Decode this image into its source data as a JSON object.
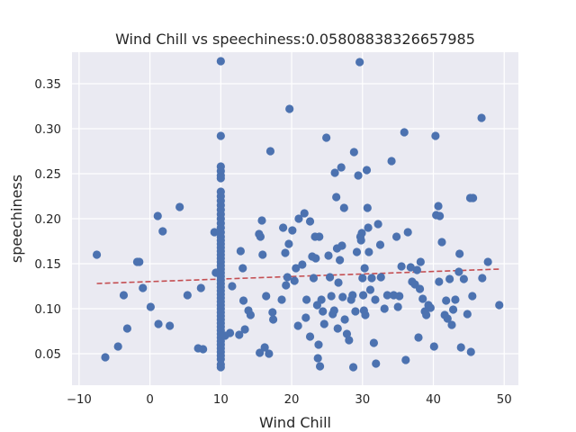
{
  "chart_data": {
    "type": "scatter",
    "title": "Wind Chill vs speechiness:0.05808838326657985",
    "xlabel": "Wind Chill",
    "ylabel": "speechiness",
    "xlim": [
      -11,
      52
    ],
    "ylim": [
      0.015,
      0.385
    ],
    "xticks": [
      -10,
      0,
      10,
      20,
      30,
      40,
      50
    ],
    "xtick_labels": [
      "−10",
      "0",
      "10",
      "20",
      "30",
      "40",
      "50"
    ],
    "yticks": [
      0.05,
      0.1,
      0.15,
      0.2,
      0.25,
      0.3,
      0.35
    ],
    "ytick_labels": [
      "0.05",
      "0.10",
      "0.15",
      "0.20",
      "0.25",
      "0.30",
      "0.35"
    ],
    "grid": true,
    "background": "#eaeaf2",
    "point_color": "#4c72b0",
    "trend_color": "#c44e52",
    "trend_line": {
      "x": [
        -7.5,
        49.3
      ],
      "y": [
        0.128,
        0.144
      ]
    },
    "points": [
      [
        -7.5,
        0.16
      ],
      [
        -6.3,
        0.046
      ],
      [
        -4.5,
        0.058
      ],
      [
        -3.7,
        0.115
      ],
      [
        -3.2,
        0.078
      ],
      [
        -1.8,
        0.152
      ],
      [
        -1.5,
        0.152
      ],
      [
        -1.0,
        0.123
      ],
      [
        0.1,
        0.102
      ],
      [
        1.1,
        0.203
      ],
      [
        1.2,
        0.083
      ],
      [
        1.8,
        0.186
      ],
      [
        2.8,
        0.081
      ],
      [
        4.2,
        0.213
      ],
      [
        5.3,
        0.115
      ],
      [
        6.8,
        0.056
      ],
      [
        7.2,
        0.123
      ],
      [
        7.5,
        0.055
      ],
      [
        9.1,
        0.185
      ],
      [
        9.3,
        0.14
      ],
      [
        9.5,
        0.14
      ],
      [
        10,
        0.375
      ],
      [
        10,
        0.292
      ],
      [
        10,
        0.258
      ],
      [
        10,
        0.253
      ],
      [
        10,
        0.248
      ],
      [
        10,
        0.245
      ],
      [
        10,
        0.23
      ],
      [
        10,
        0.225
      ],
      [
        10,
        0.22
      ],
      [
        10,
        0.215
      ],
      [
        10,
        0.21
      ],
      [
        10,
        0.205
      ],
      [
        10,
        0.2
      ],
      [
        10,
        0.195
      ],
      [
        10,
        0.19
      ],
      [
        10,
        0.185
      ],
      [
        10,
        0.18
      ],
      [
        10,
        0.176
      ],
      [
        10,
        0.172
      ],
      [
        10,
        0.168
      ],
      [
        10,
        0.164
      ],
      [
        10,
        0.16
      ],
      [
        10,
        0.156
      ],
      [
        10,
        0.152
      ],
      [
        10,
        0.148
      ],
      [
        10,
        0.144
      ],
      [
        10,
        0.14
      ],
      [
        10,
        0.136
      ],
      [
        10,
        0.132
      ],
      [
        10,
        0.128
      ],
      [
        10,
        0.124
      ],
      [
        10,
        0.12
      ],
      [
        10,
        0.116
      ],
      [
        10,
        0.112
      ],
      [
        10,
        0.108
      ],
      [
        10,
        0.104
      ],
      [
        10,
        0.1
      ],
      [
        10,
        0.096
      ],
      [
        10,
        0.092
      ],
      [
        10,
        0.088
      ],
      [
        10,
        0.084
      ],
      [
        10,
        0.08
      ],
      [
        10,
        0.076
      ],
      [
        10,
        0.072
      ],
      [
        10,
        0.068
      ],
      [
        10,
        0.064
      ],
      [
        10,
        0.06
      ],
      [
        10,
        0.056
      ],
      [
        10,
        0.052
      ],
      [
        10,
        0.048
      ],
      [
        10,
        0.044
      ],
      [
        10,
        0.038
      ],
      [
        10,
        0.035
      ],
      [
        10.6,
        0.07
      ],
      [
        11.3,
        0.073
      ],
      [
        11.6,
        0.125
      ],
      [
        12.6,
        0.071
      ],
      [
        12.8,
        0.164
      ],
      [
        13.1,
        0.145
      ],
      [
        13.2,
        0.109
      ],
      [
        13.4,
        0.077
      ],
      [
        13.9,
        0.098
      ],
      [
        14.2,
        0.093
      ],
      [
        15.4,
        0.183
      ],
      [
        15.6,
        0.18
      ],
      [
        15.8,
        0.198
      ],
      [
        15.9,
        0.16
      ],
      [
        15.5,
        0.051
      ],
      [
        16.4,
        0.114
      ],
      [
        16.2,
        0.057
      ],
      [
        16.8,
        0.05
      ],
      [
        17.0,
        0.275
      ],
      [
        17.3,
        0.096
      ],
      [
        17.4,
        0.088
      ],
      [
        18.6,
        0.11
      ],
      [
        18.8,
        0.19
      ],
      [
        19.1,
        0.162
      ],
      [
        19.2,
        0.126
      ],
      [
        19.4,
        0.135
      ],
      [
        19.6,
        0.172
      ],
      [
        19.7,
        0.322
      ],
      [
        20.1,
        0.187
      ],
      [
        20.4,
        0.131
      ],
      [
        20.6,
        0.145
      ],
      [
        20.9,
        0.081
      ],
      [
        21.0,
        0.2
      ],
      [
        21.5,
        0.149
      ],
      [
        21.8,
        0.206
      ],
      [
        22.1,
        0.11
      ],
      [
        22.0,
        0.09
      ],
      [
        22.6,
        0.197
      ],
      [
        22.6,
        0.069
      ],
      [
        22.9,
        0.158
      ],
      [
        23.1,
        0.134
      ],
      [
        23.3,
        0.18
      ],
      [
        23.4,
        0.156
      ],
      [
        23.6,
        0.104
      ],
      [
        23.8,
        0.06
      ],
      [
        23.9,
        0.18
      ],
      [
        24.0,
        0.036
      ],
      [
        23.7,
        0.045
      ],
      [
        24.2,
        0.11
      ],
      [
        24.4,
        0.097
      ],
      [
        24.6,
        0.083
      ],
      [
        24.9,
        0.29
      ],
      [
        25.2,
        0.159
      ],
      [
        25.4,
        0.135
      ],
      [
        25.6,
        0.114
      ],
      [
        25.8,
        0.094
      ],
      [
        26.0,
        0.098
      ],
      [
        26.1,
        0.251
      ],
      [
        26.3,
        0.224
      ],
      [
        26.4,
        0.167
      ],
      [
        26.6,
        0.129
      ],
      [
        26.5,
        0.078
      ],
      [
        26.8,
        0.154
      ],
      [
        27.0,
        0.257
      ],
      [
        27.1,
        0.17
      ],
      [
        27.2,
        0.113
      ],
      [
        27.4,
        0.212
      ],
      [
        27.5,
        0.088
      ],
      [
        27.8,
        0.072
      ],
      [
        28.1,
        0.065
      ],
      [
        28.4,
        0.11
      ],
      [
        28.6,
        0.115
      ],
      [
        28.7,
        0.035
      ],
      [
        28.8,
        0.274
      ],
      [
        29.0,
        0.097
      ],
      [
        29.2,
        0.163
      ],
      [
        29.4,
        0.248
      ],
      [
        29.6,
        0.374
      ],
      [
        29.7,
        0.18
      ],
      [
        29.8,
        0.176
      ],
      [
        29.9,
        0.184
      ],
      [
        30.0,
        0.134
      ],
      [
        30.1,
        0.115
      ],
      [
        30.2,
        0.098
      ],
      [
        30.3,
        0.145
      ],
      [
        30.4,
        0.093
      ],
      [
        30.6,
        0.254
      ],
      [
        30.7,
        0.212
      ],
      [
        30.8,
        0.19
      ],
      [
        30.9,
        0.163
      ],
      [
        31.1,
        0.121
      ],
      [
        31.3,
        0.134
      ],
      [
        31.6,
        0.062
      ],
      [
        31.8,
        0.11
      ],
      [
        31.9,
        0.039
      ],
      [
        32.2,
        0.194
      ],
      [
        32.5,
        0.171
      ],
      [
        32.6,
        0.135
      ],
      [
        33.1,
        0.1
      ],
      [
        33.5,
        0.115
      ],
      [
        34.1,
        0.264
      ],
      [
        34.4,
        0.115
      ],
      [
        34.8,
        0.18
      ],
      [
        35.0,
        0.102
      ],
      [
        35.2,
        0.114
      ],
      [
        35.5,
        0.147
      ],
      [
        35.9,
        0.296
      ],
      [
        36.1,
        0.043
      ],
      [
        36.4,
        0.185
      ],
      [
        36.8,
        0.146
      ],
      [
        37.0,
        0.13
      ],
      [
        37.4,
        0.127
      ],
      [
        37.7,
        0.143
      ],
      [
        37.9,
        0.068
      ],
      [
        38.1,
        0.122
      ],
      [
        38.2,
        0.152
      ],
      [
        38.5,
        0.111
      ],
      [
        38.8,
        0.097
      ],
      [
        39.0,
        0.093
      ],
      [
        39.3,
        0.104
      ],
      [
        39.6,
        0.101
      ],
      [
        40.1,
        0.058
      ],
      [
        40.3,
        0.292
      ],
      [
        40.4,
        0.204
      ],
      [
        40.7,
        0.214
      ],
      [
        40.9,
        0.203
      ],
      [
        40.8,
        0.13
      ],
      [
        41.2,
        0.174
      ],
      [
        41.6,
        0.093
      ],
      [
        41.8,
        0.109
      ],
      [
        42.0,
        0.089
      ],
      [
        42.3,
        0.133
      ],
      [
        42.6,
        0.082
      ],
      [
        42.8,
        0.099
      ],
      [
        43.1,
        0.11
      ],
      [
        43.6,
        0.141
      ],
      [
        43.7,
        0.161
      ],
      [
        43.9,
        0.057
      ],
      [
        44.3,
        0.133
      ],
      [
        44.8,
        0.094
      ],
      [
        45.2,
        0.223
      ],
      [
        45.6,
        0.223
      ],
      [
        45.5,
        0.114
      ],
      [
        45.3,
        0.052
      ],
      [
        46.8,
        0.312
      ],
      [
        46.9,
        0.134
      ],
      [
        47.7,
        0.152
      ],
      [
        49.3,
        0.104
      ]
    ]
  }
}
